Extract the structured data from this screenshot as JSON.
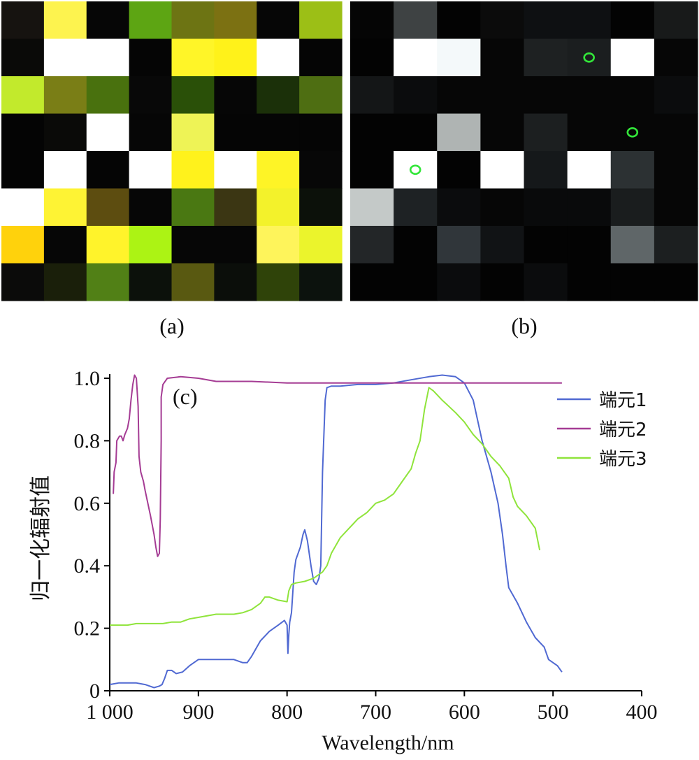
{
  "panels": {
    "a": {
      "label": "(a)",
      "grid": [
        [
          "#161310",
          "#FDF34F",
          "#060606",
          "#5DA513",
          "#6D7413",
          "#7C7112",
          "#060606",
          "#9CBF16"
        ],
        [
          "#0A0A08",
          "#FFFFFF",
          "#FFFFFF",
          "#050505",
          "#FFF528",
          "#FFF21A",
          "#FFFFFF",
          "#050505"
        ],
        [
          "#C2EA2C",
          "#7A7E16",
          "#49710E",
          "#080808",
          "#2A5008",
          "#060606",
          "#1B3009",
          "#4E6E12"
        ],
        [
          "#040404",
          "#0A0A08",
          "#FFFFFF",
          "#060606",
          "#EEF356",
          "#050505",
          "#050505",
          "#050505"
        ],
        [
          "#040404",
          "#FFFFFF",
          "#050505",
          "#FFFFFF",
          "#FFF21C",
          "#FFFFFF",
          "#FEF426",
          "#070707"
        ],
        [
          "#FFFFFF",
          "#FEF334",
          "#5D4D10",
          "#060606",
          "#4A7812",
          "#3B3613",
          "#F3F22B",
          "#0C110A"
        ],
        [
          "#FFD20C",
          "#060606",
          "#FFF32B",
          "#ACF314",
          "#060606",
          "#060606",
          "#FEF45B",
          "#EBF42C"
        ],
        [
          "#0B0B0A",
          "#1A1F0A",
          "#518016",
          "#0C110B",
          "#595911",
          "#0B0E0A",
          "#2F4309",
          "#0C120D"
        ]
      ]
    },
    "b": {
      "label": "(b)",
      "grid": [
        [
          "#050505",
          "#3E4243",
          "#030303",
          "#0B0B0B",
          "#0E1012",
          "#0E1012",
          "#030303",
          "#181A1A"
        ],
        [
          "#030303",
          "#FFFFFF",
          "#F4F9FA",
          "#060606",
          "#1E2122",
          "#1B1E1F",
          "#FFFFFF",
          "#060606"
        ],
        [
          "#141617",
          "#0B0C0D",
          "#060606",
          "#060606",
          "#060606",
          "#060606",
          "#060606",
          "#0B0C0D"
        ],
        [
          "#030303",
          "#030303",
          "#AFB4B3",
          "#060606",
          "#1C1F20",
          "#060606",
          "#060606",
          "#060606"
        ],
        [
          "#030303",
          "#FFFFFF",
          "#030303",
          "#FFFFFF",
          "#15181A",
          "#FFFFFF",
          "#2C3133",
          "#060606"
        ],
        [
          "#C4C9C8",
          "#1E2224",
          "#0B0C0D",
          "#060606",
          "#090A0B",
          "#090A0B",
          "#1A1D1E",
          "#060606"
        ],
        [
          "#232628",
          "#030303",
          "#30363A",
          "#111315",
          "#030303",
          "#030303",
          "#5F6668",
          "#1C1F20"
        ],
        [
          "#030303",
          "#030303",
          "#0B0C0D",
          "#030303",
          "#0B0C0D",
          "#030303",
          "#030303",
          "#030303"
        ]
      ],
      "markers": [
        {
          "row": 1,
          "col": 5,
          "glyph": "o"
        },
        {
          "row": 3,
          "col": 6,
          "glyph": "o"
        },
        {
          "row": 4,
          "col": 1,
          "glyph": "o"
        }
      ],
      "marker_color": "#33E63A"
    }
  },
  "chart_data": {
    "type": "line",
    "panel_label": "(c)",
    "xlabel": "Wavelength/nm",
    "ylabel": "归一化辐射值",
    "x_reversed": true,
    "xlim": [
      1000,
      400
    ],
    "ylim": [
      0,
      1.0
    ],
    "x_ticks": [
      1000,
      900,
      800,
      700,
      600,
      500,
      400
    ],
    "x_tick_labels": [
      "1 000",
      "900",
      "800",
      "700",
      "600",
      "500",
      "400"
    ],
    "y_ticks": [
      0,
      0.2,
      0.4,
      0.6,
      0.8,
      1.0
    ],
    "y_tick_labels": [
      "0",
      "0.2",
      "0.4",
      "0.6",
      "0.8",
      "1.0"
    ],
    "grid": false,
    "legend_position": "right",
    "series": [
      {
        "name": "端元1",
        "color": "#5069D2",
        "points": [
          [
            1000,
            0.02
          ],
          [
            990,
            0.025
          ],
          [
            970,
            0.025
          ],
          [
            960,
            0.02
          ],
          [
            955,
            0.015
          ],
          [
            950,
            0.01
          ],
          [
            944,
            0.015
          ],
          [
            941,
            0.02
          ],
          [
            938,
            0.04
          ],
          [
            935,
            0.065
          ],
          [
            930,
            0.065
          ],
          [
            925,
            0.055
          ],
          [
            918,
            0.06
          ],
          [
            910,
            0.08
          ],
          [
            900,
            0.1
          ],
          [
            880,
            0.1
          ],
          [
            860,
            0.1
          ],
          [
            850,
            0.09
          ],
          [
            845,
            0.09
          ],
          [
            840,
            0.11
          ],
          [
            830,
            0.16
          ],
          [
            820,
            0.19
          ],
          [
            810,
            0.21
          ],
          [
            803,
            0.225
          ],
          [
            800,
            0.21
          ],
          [
            799,
            0.12
          ],
          [
            798,
            0.18
          ],
          [
            797,
            0.22
          ],
          [
            795,
            0.25
          ],
          [
            792,
            0.38
          ],
          [
            790,
            0.42
          ],
          [
            785,
            0.46
          ],
          [
            782,
            0.5
          ],
          [
            780,
            0.515
          ],
          [
            777,
            0.48
          ],
          [
            773,
            0.4
          ],
          [
            770,
            0.35
          ],
          [
            767,
            0.34
          ],
          [
            764,
            0.36
          ],
          [
            762,
            0.4
          ],
          [
            760,
            0.7
          ],
          [
            757,
            0.93
          ],
          [
            755,
            0.97
          ],
          [
            750,
            0.975
          ],
          [
            740,
            0.975
          ],
          [
            720,
            0.98
          ],
          [
            700,
            0.98
          ],
          [
            680,
            0.985
          ],
          [
            660,
            0.995
          ],
          [
            640,
            1.005
          ],
          [
            625,
            1.01
          ],
          [
            610,
            1.005
          ],
          [
            600,
            0.985
          ],
          [
            590,
            0.93
          ],
          [
            580,
            0.8
          ],
          [
            570,
            0.7
          ],
          [
            562,
            0.6
          ],
          [
            557,
            0.5
          ],
          [
            553,
            0.4
          ],
          [
            550,
            0.33
          ],
          [
            540,
            0.28
          ],
          [
            530,
            0.22
          ],
          [
            520,
            0.17
          ],
          [
            510,
            0.14
          ],
          [
            505,
            0.1
          ],
          [
            495,
            0.08
          ],
          [
            490,
            0.06
          ]
        ]
      },
      {
        "name": "端元2",
        "color": "#A53C94",
        "points": [
          [
            996,
            0.63
          ],
          [
            995,
            0.7
          ],
          [
            993,
            0.73
          ],
          [
            992,
            0.8
          ],
          [
            989,
            0.815
          ],
          [
            987,
            0.815
          ],
          [
            985,
            0.8
          ],
          [
            983,
            0.82
          ],
          [
            980,
            0.84
          ],
          [
            978,
            0.87
          ],
          [
            976,
            0.93
          ],
          [
            974,
            0.98
          ],
          [
            972,
            1.01
          ],
          [
            970,
            1.0
          ],
          [
            968,
            0.91
          ],
          [
            967,
            0.75
          ],
          [
            965,
            0.7
          ],
          [
            962,
            0.67
          ],
          [
            960,
            0.64
          ],
          [
            957,
            0.6
          ],
          [
            954,
            0.56
          ],
          [
            950,
            0.5
          ],
          [
            948,
            0.46
          ],
          [
            946,
            0.43
          ],
          [
            944,
            0.44
          ],
          [
            943,
            0.55
          ],
          [
            942,
            0.8
          ],
          [
            942,
            0.94
          ],
          [
            940,
            0.98
          ],
          [
            935,
            1.0
          ],
          [
            920,
            1.005
          ],
          [
            900,
            1.0
          ],
          [
            880,
            0.99
          ],
          [
            840,
            0.99
          ],
          [
            800,
            0.985
          ],
          [
            760,
            0.985
          ],
          [
            720,
            0.985
          ],
          [
            680,
            0.985
          ],
          [
            640,
            0.985
          ],
          [
            600,
            0.985
          ],
          [
            560,
            0.985
          ],
          [
            520,
            0.985
          ],
          [
            490,
            0.985
          ]
        ]
      },
      {
        "name": "端元3",
        "color": "#8FE43B",
        "points": [
          [
            1000,
            0.21
          ],
          [
            990,
            0.21
          ],
          [
            980,
            0.21
          ],
          [
            970,
            0.215
          ],
          [
            960,
            0.215
          ],
          [
            950,
            0.215
          ],
          [
            940,
            0.215
          ],
          [
            930,
            0.22
          ],
          [
            920,
            0.22
          ],
          [
            910,
            0.23
          ],
          [
            900,
            0.235
          ],
          [
            880,
            0.245
          ],
          [
            860,
            0.245
          ],
          [
            850,
            0.25
          ],
          [
            840,
            0.26
          ],
          [
            830,
            0.28
          ],
          [
            825,
            0.3
          ],
          [
            820,
            0.3
          ],
          [
            810,
            0.29
          ],
          [
            800,
            0.285
          ],
          [
            798,
            0.32
          ],
          [
            795,
            0.34
          ],
          [
            790,
            0.345
          ],
          [
            780,
            0.35
          ],
          [
            770,
            0.36
          ],
          [
            760,
            0.38
          ],
          [
            755,
            0.4
          ],
          [
            750,
            0.44
          ],
          [
            740,
            0.49
          ],
          [
            730,
            0.52
          ],
          [
            720,
            0.55
          ],
          [
            710,
            0.57
          ],
          [
            700,
            0.6
          ],
          [
            690,
            0.61
          ],
          [
            680,
            0.63
          ],
          [
            670,
            0.67
          ],
          [
            660,
            0.71
          ],
          [
            655,
            0.76
          ],
          [
            650,
            0.8
          ],
          [
            645,
            0.9
          ],
          [
            640,
            0.97
          ],
          [
            635,
            0.96
          ],
          [
            625,
            0.93
          ],
          [
            610,
            0.89
          ],
          [
            600,
            0.86
          ],
          [
            590,
            0.82
          ],
          [
            580,
            0.79
          ],
          [
            570,
            0.75
          ],
          [
            560,
            0.72
          ],
          [
            550,
            0.68
          ],
          [
            545,
            0.62
          ],
          [
            540,
            0.59
          ],
          [
            530,
            0.56
          ],
          [
            520,
            0.52
          ],
          [
            515,
            0.45
          ]
        ]
      }
    ]
  }
}
